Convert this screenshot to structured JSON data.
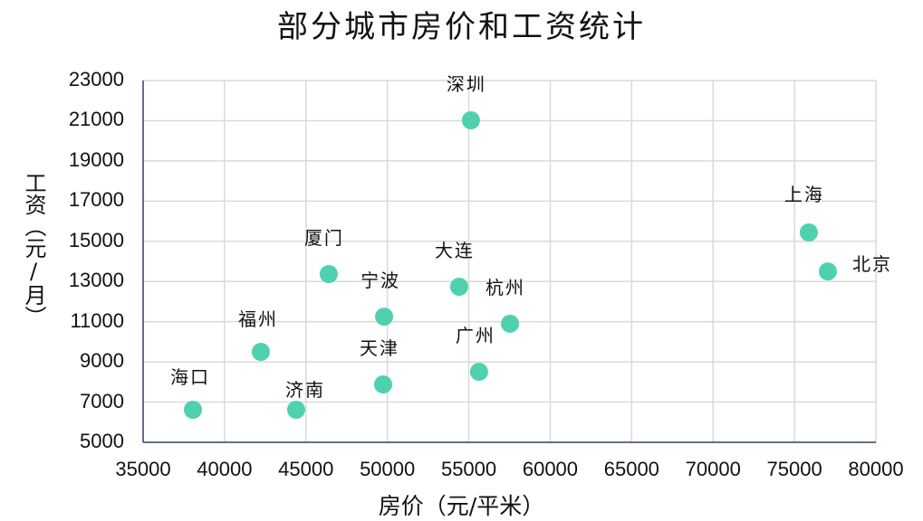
{
  "chart_data": {
    "type": "scatter",
    "title": "部分城市房价和工资统计",
    "xlabel": "房价（元/平米）",
    "ylabel": "工资（元/月）",
    "xlim": [
      35000,
      80000
    ],
    "ylim": [
      5000,
      23000
    ],
    "x_ticks": [
      35000,
      40000,
      45000,
      50000,
      55000,
      60000,
      65000,
      70000,
      75000,
      80000
    ],
    "y_ticks": [
      5000,
      7000,
      9000,
      11000,
      13000,
      15000,
      17000,
      19000,
      21000,
      23000
    ],
    "grid": true,
    "legend": null,
    "marker_color": "#4fd1b0",
    "points": [
      {
        "label": "海口",
        "x": 38060,
        "y": 6620
      },
      {
        "label": "福州",
        "x": 42230,
        "y": 9500
      },
      {
        "label": "济南",
        "x": 44400,
        "y": 6620
      },
      {
        "label": "厦门",
        "x": 46400,
        "y": 13370
      },
      {
        "label": "天津",
        "x": 49740,
        "y": 7880
      },
      {
        "label": "宁波",
        "x": 49800,
        "y": 11250
      },
      {
        "label": "大连",
        "x": 54410,
        "y": 12740
      },
      {
        "label": "深圳",
        "x": 55130,
        "y": 21020
      },
      {
        "label": "广州",
        "x": 55630,
        "y": 8510
      },
      {
        "label": "杭州",
        "x": 57530,
        "y": 10900
      },
      {
        "label": "上海",
        "x": 75880,
        "y": 15440
      },
      {
        "label": "北京",
        "x": 77050,
        "y": 13500
      }
    ]
  },
  "label_offsets": {
    "海口": [
      -25,
      -52
    ],
    "福州": [
      -25,
      -52
    ],
    "济南": [
      -12,
      -38
    ],
    "厦门": [
      -27,
      -56
    ],
    "天津": [
      -26,
      -56
    ],
    "宁波": [
      -26,
      -56
    ],
    "大连": [
      -27,
      -56
    ],
    "深圳": [
      -27,
      -56
    ],
    "广州": [
      -26,
      -56
    ],
    "杭州": [
      -27,
      -56
    ],
    "上海": [
      -27,
      -58
    ],
    "北京": [
      27,
      -24
    ]
  },
  "colors": {
    "grid": "#d9d9d9",
    "axis": "#2f3e6e",
    "marker": "#4fd1b0",
    "text": "#111111"
  }
}
